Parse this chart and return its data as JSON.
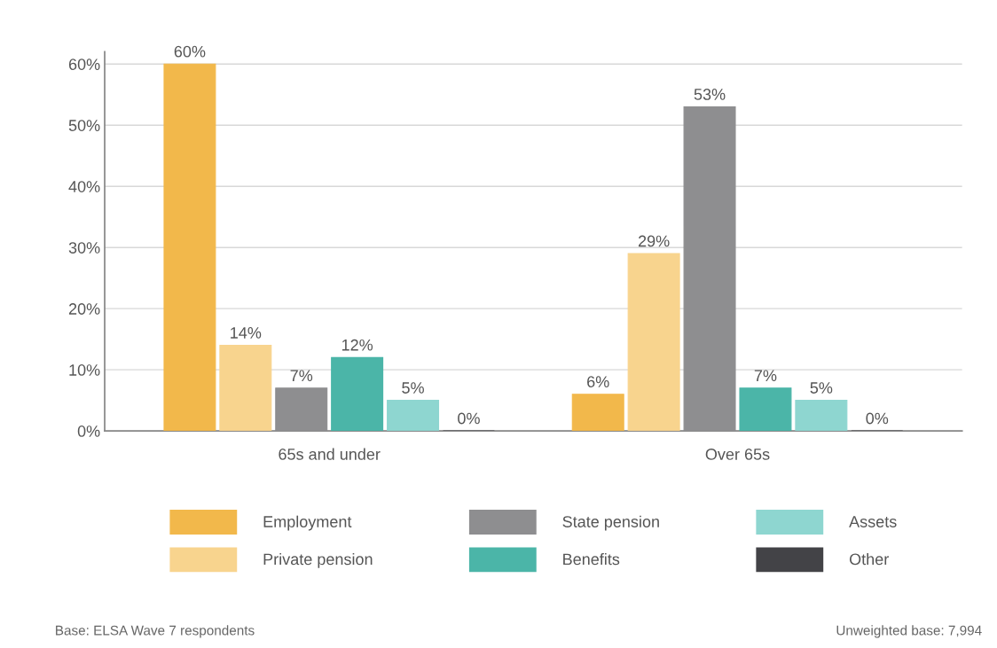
{
  "chart_data": {
    "type": "bar",
    "categories": [
      "65s and under",
      "Over 65s"
    ],
    "series": [
      {
        "name": "Employment",
        "color": "#f2b84b",
        "values": [
          60,
          6
        ],
        "value_labels": [
          "60%",
          "6%"
        ]
      },
      {
        "name": "Private pension",
        "color": "#f8d48e",
        "values": [
          14,
          29
        ],
        "value_labels": [
          "14%",
          "29%"
        ]
      },
      {
        "name": "State pension",
        "color": "#8e8e90",
        "values": [
          7,
          53
        ],
        "value_labels": [
          "7%",
          "53%"
        ]
      },
      {
        "name": "Benefits",
        "color": "#4bb5a8",
        "values": [
          12,
          7
        ],
        "value_labels": [
          "12%",
          "7%"
        ]
      },
      {
        "name": "Assets",
        "color": "#8ed6d0",
        "values": [
          5,
          5
        ],
        "value_labels": [
          "5%",
          "5%"
        ]
      },
      {
        "name": "Other",
        "color": "#434347",
        "values": [
          0,
          0
        ],
        "value_labels": [
          "0%",
          "0%"
        ]
      }
    ],
    "ylim": [
      0,
      62
    ],
    "yticks": [
      {
        "value": 0,
        "label": "0%"
      },
      {
        "value": 10,
        "label": "10%"
      },
      {
        "value": 20,
        "label": "20%"
      },
      {
        "value": 30,
        "label": "30%"
      },
      {
        "value": 40,
        "label": "40%"
      },
      {
        "value": 50,
        "label": "50%"
      },
      {
        "value": 60,
        "label": "60%"
      }
    ],
    "grid": "y",
    "legend": "bottom",
    "annotations": [
      "Base: ELSA Wave 7 respondents",
      "Unweighted base: 7,994"
    ]
  }
}
